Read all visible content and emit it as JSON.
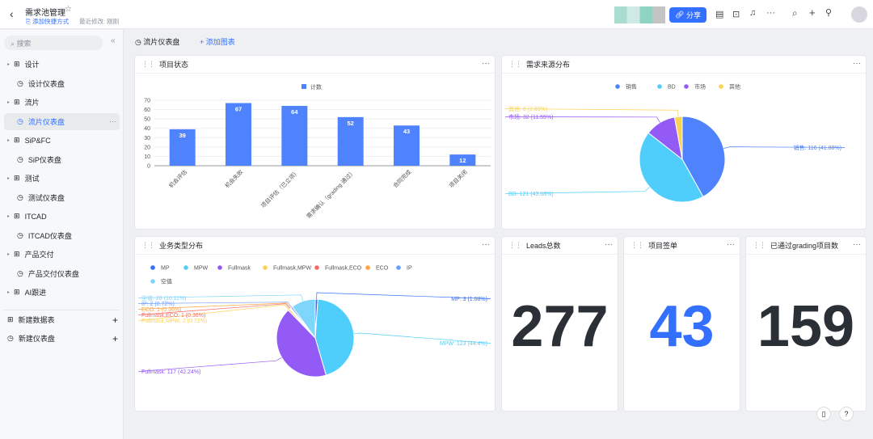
{
  "header": {
    "title": "需求池管理",
    "add_shortcut": "添加快捷方式",
    "last_modified": "最近修改: 刚刚",
    "share": "分享"
  },
  "sidebar": {
    "search_placeholder": "搜索",
    "items": [
      {
        "label": "设计",
        "type": "table"
      },
      {
        "label": "设计仪表盘",
        "type": "dashboard"
      },
      {
        "label": "流片",
        "type": "table"
      },
      {
        "label": "流片仪表盘",
        "type": "dashboard",
        "active": true
      },
      {
        "label": "SiP&FC",
        "type": "table"
      },
      {
        "label": "SiP仪表盘",
        "type": "dashboard"
      },
      {
        "label": "测试",
        "type": "table"
      },
      {
        "label": "测试仪表盘",
        "type": "dashboard"
      },
      {
        "label": "ITCAD",
        "type": "table"
      },
      {
        "label": "ITCAD仪表盘",
        "type": "dashboard"
      },
      {
        "label": "产品交付",
        "type": "table"
      },
      {
        "label": "产品交付仪表盘",
        "type": "dashboard"
      },
      {
        "label": "AI跟进",
        "type": "table"
      }
    ],
    "new_table": "新建数据表",
    "new_dashboard": "新建仪表盘"
  },
  "toolbar": {
    "dashboard_name": "流片仪表盘",
    "add_chart": "+ 添加图表"
  },
  "cards": {
    "c1": "项目状态",
    "c2": "需求来源分布",
    "c3": "业务类型分布",
    "c4": "Leads总数",
    "c5": "项目签单",
    "c6": "已通过grading项目数"
  },
  "metrics": {
    "leads": "277",
    "signed": "43",
    "grading": "159"
  },
  "colors": {
    "primary": "#3370ff",
    "bar": "#4e83fd"
  },
  "chart_data": [
    {
      "type": "bar",
      "title": "项目状态",
      "legend": [
        "计数"
      ],
      "categories": [
        "机会评估",
        "机会失败",
        "项目评估（已立项）",
        "需求确认（grading 通过）",
        "合同完成",
        "项目关闭"
      ],
      "values": [
        39,
        67,
        64,
        52,
        43,
        12
      ],
      "yticks": [
        "0",
        "10",
        "20",
        "30",
        "40",
        "50",
        "60",
        "70"
      ],
      "ylim": [
        0,
        70
      ]
    },
    {
      "type": "pie",
      "title": "需求来源分布",
      "legend": [
        "销售",
        "BD",
        "市场",
        "其他"
      ],
      "values": [
        116,
        121,
        32,
        8
      ],
      "labels": [
        "销售: 116 (41.88%)",
        "BD: 121 (43.68%)",
        "市场: 32 (11.55%)",
        "其他: 8 (2.89%)"
      ],
      "colors": [
        "#4e83fd",
        "#50cefb",
        "#935af6",
        "#fad355"
      ]
    },
    {
      "type": "pie",
      "title": "业务类型分布",
      "legend": [
        "MP",
        "MPW",
        "Fullmask",
        "Fullmask,MPW",
        "Fullmask,ECO",
        "ECO",
        "IP",
        "空值"
      ],
      "values": [
        3,
        123,
        117,
        2,
        1,
        1,
        2,
        28
      ],
      "labels": [
        "MP: 3 (1.08%)",
        "MPW: 123 (44.4%)",
        "Fullmask: 117 (42.24%)",
        "Fullmask,MPW: 2 (0.72%)",
        "Fullmask,ECO: 1 (0.36%)",
        "ECO: 1 (0.36%)",
        "IP: 2 (0.72%)",
        "空值: 28 (10.11%)"
      ],
      "colors": [
        "#3370ff",
        "#50cefb",
        "#935af6",
        "#fad355",
        "#f76964",
        "#ffa13d",
        "#6b9eff",
        "#7fd6fb"
      ]
    }
  ]
}
